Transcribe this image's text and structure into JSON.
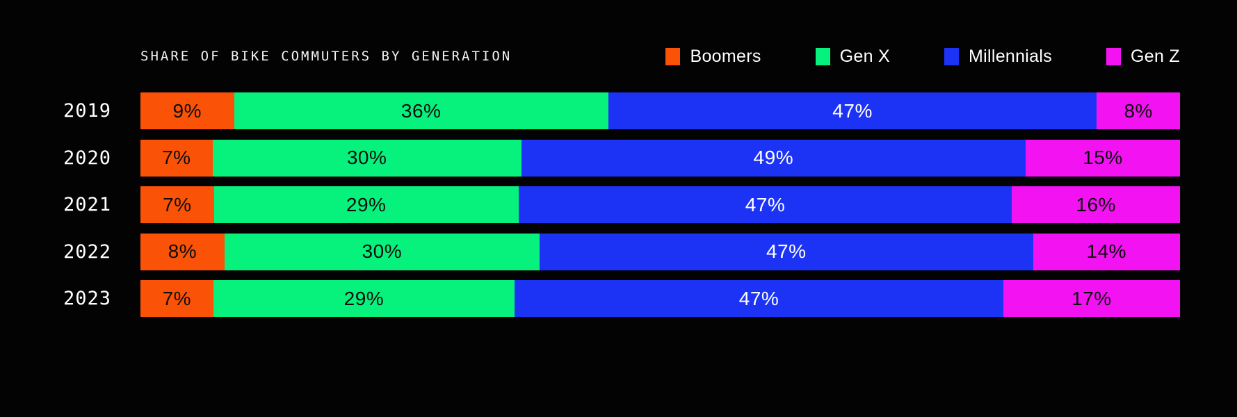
{
  "title": "SHARE OF BIKE COMMUTERS BY GENERATION",
  "colors": {
    "background": "#030303",
    "title_text": "#F4F4F4",
    "year_text": "#FFFFFF",
    "boomers": "#FA5207",
    "gen_x": "#06F27D",
    "millennials": "#1C33F5",
    "gen_z": "#F212F2",
    "label_on_light_segment": "#0D0D0D",
    "label_on_blue_segment": "#FFFFFF"
  },
  "legend": {
    "position": "top-right",
    "items": [
      {
        "label": "Boomers"
      },
      {
        "label": "Gen X"
      },
      {
        "label": "Millennials"
      },
      {
        "label": "Gen Z"
      }
    ]
  },
  "chart_data": {
    "type": "bar",
    "subtype": "stacked-100",
    "orientation": "horizontal",
    "title": "SHARE OF BIKE COMMUTERS BY GENERATION",
    "categories": [
      "2019",
      "2020",
      "2021",
      "2022",
      "2023"
    ],
    "series": [
      {
        "name": "Boomers",
        "color": "#FA5207",
        "label_color": "#0D0D0D",
        "values": [
          9,
          7,
          7,
          8,
          7
        ]
      },
      {
        "name": "Gen X",
        "color": "#06F27D",
        "label_color": "#0D0D0D",
        "values": [
          36,
          30,
          29,
          30,
          29
        ]
      },
      {
        "name": "Millennials",
        "color": "#1C33F5",
        "label_color": "#FFFFFF",
        "values": [
          47,
          49,
          47,
          47,
          47
        ]
      },
      {
        "name": "Gen Z",
        "color": "#F212F2",
        "label_color": "#0D0D0D",
        "values": [
          8,
          15,
          16,
          14,
          17
        ]
      }
    ],
    "value_suffix": "%",
    "data_labels": true,
    "grid": false,
    "xlabel": "",
    "ylabel": "",
    "legend_position": "top-right"
  }
}
